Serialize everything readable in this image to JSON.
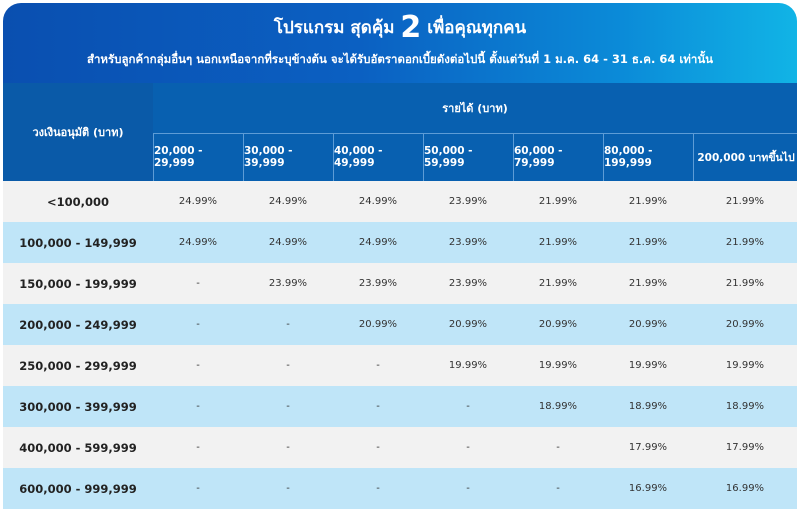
{
  "banner": {
    "title_prefix": "โปรแกรม สุดคุ้ม",
    "title_number": "2",
    "title_suffix": "เพื่อคุณทุกคน",
    "subtitle": "สำหรับลูกค้ากลุ่มอื่นๆ นอกเหนือจากที่ระบุข้างต้น จะได้รับอัตราดอกเบี้ยดังต่อไปนี้ ตั้งแต่วันที่ 1 ม.ค. 64 - 31 ธ.ค. 64 เท่านั้น"
  },
  "colors": {
    "banner_start": "#0a4fb0",
    "banner_end": "#11b4e6",
    "header_bg": "#0860b0",
    "row_odd": "#f2f2f2",
    "row_even": "#bfe5f8"
  },
  "table": {
    "first_header": "วงเงินอนุมัติ (บาท)",
    "group_header": "รายได้ (บาท)",
    "income_columns": [
      "20,000 - 29,999",
      "30,000 - 39,999",
      "40,000 - 49,999",
      "50,000 - 59,999",
      "60,000 - 79,999",
      "80,000 - 199,999",
      "200,000 บาทขึ้นไป"
    ],
    "rows": [
      {
        "label": "<100,000",
        "cells": [
          "24.99%",
          "24.99%",
          "24.99%",
          "23.99%",
          "21.99%",
          "21.99%",
          "21.99%"
        ]
      },
      {
        "label": "100,000 - 149,999",
        "cells": [
          "24.99%",
          "24.99%",
          "24.99%",
          "23.99%",
          "21.99%",
          "21.99%",
          "21.99%"
        ]
      },
      {
        "label": "150,000 - 199,999",
        "cells": [
          "-",
          "23.99%",
          "23.99%",
          "23.99%",
          "21.99%",
          "21.99%",
          "21.99%"
        ]
      },
      {
        "label": "200,000 - 249,999",
        "cells": [
          "-",
          "-",
          "20.99%",
          "20.99%",
          "20.99%",
          "20.99%",
          "20.99%"
        ]
      },
      {
        "label": "250,000 - 299,999",
        "cells": [
          "-",
          "-",
          "-",
          "19.99%",
          "19.99%",
          "19.99%",
          "19.99%"
        ]
      },
      {
        "label": "300,000 - 399,999",
        "cells": [
          "-",
          "-",
          "-",
          "-",
          "18.99%",
          "18.99%",
          "18.99%"
        ]
      },
      {
        "label": "400,000 - 599,999",
        "cells": [
          "-",
          "-",
          "-",
          "-",
          "-",
          "17.99%",
          "17.99%"
        ]
      },
      {
        "label": "600,000 - 999,999",
        "cells": [
          "-",
          "-",
          "-",
          "-",
          "-",
          "16.99%",
          "16.99%"
        ]
      }
    ]
  }
}
